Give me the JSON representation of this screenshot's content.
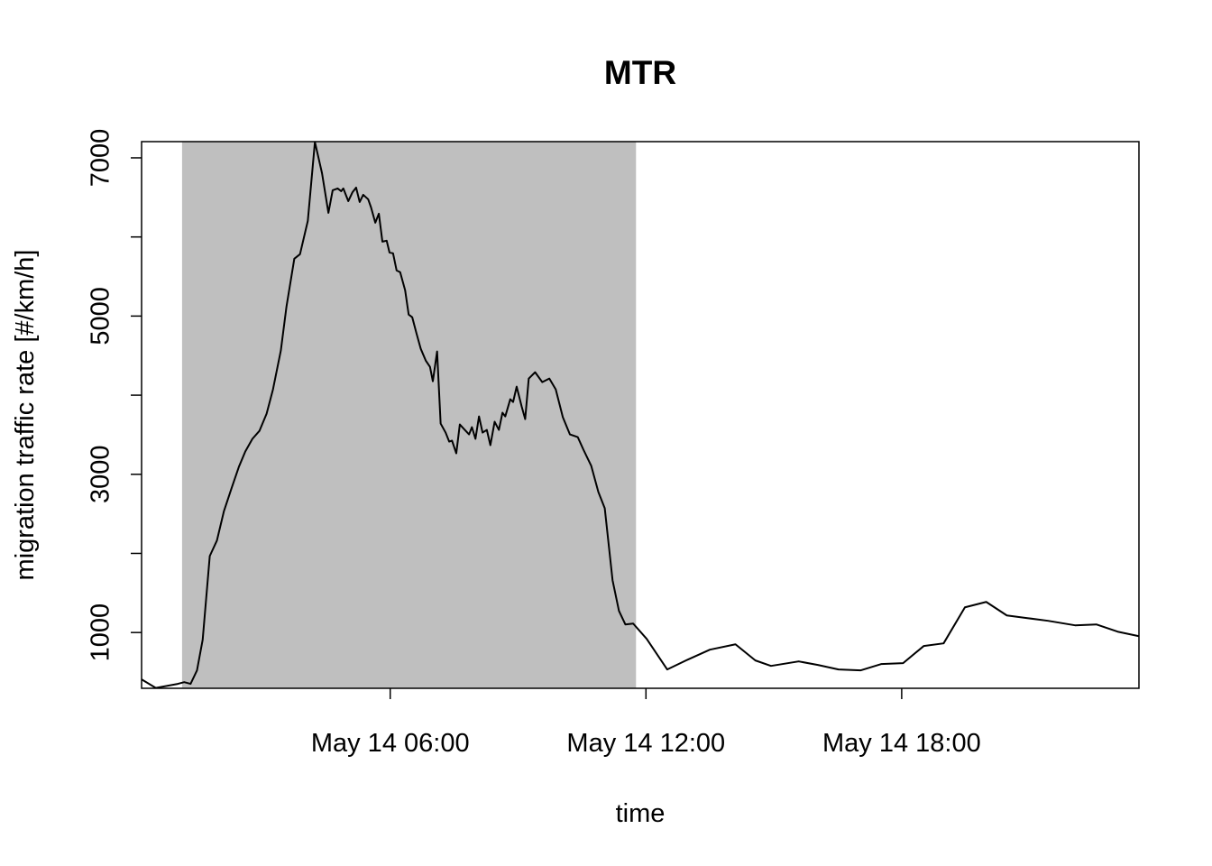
{
  "chart_data": {
    "type": "line",
    "title": "MTR",
    "xlabel": "time",
    "ylabel": "migration traffic rate [#/km/h]",
    "x": [
      "00:10",
      "00:30",
      "01:01",
      "01:10",
      "01:19",
      "01:28",
      "01:36",
      "01:46",
      "01:56",
      "02:06",
      "02:17",
      "02:27",
      "02:36",
      "02:46",
      "02:56",
      "03:06",
      "03:15",
      "03:26",
      "03:34",
      "03:45",
      "03:53",
      "04:04",
      "04:14",
      "04:24",
      "04:33",
      "04:39",
      "04:46",
      "04:51",
      "04:54",
      "05:01",
      "05:07",
      "05:12",
      "05:17",
      "05:22",
      "05:29",
      "05:33",
      "05:39",
      "05:44",
      "05:49",
      "05:55",
      "05:59",
      "06:04",
      "06:09",
      "06:14",
      "06:21",
      "06:26",
      "06:31",
      "06:37",
      "06:43",
      "06:50",
      "06:56",
      "07:00",
      "07:06",
      "07:11",
      "07:18",
      "07:23",
      "07:27",
      "07:33",
      "07:38",
      "07:45",
      "07:51",
      "07:55",
      "08:00",
      "08:05",
      "08:10",
      "08:16",
      "08:21",
      "08:27",
      "08:33",
      "08:38",
      "08:42",
      "08:49",
      "08:53",
      "08:58",
      "09:05",
      "09:10",
      "09:15",
      "09:24",
      "09:34",
      "09:44",
      "09:53",
      "10:03",
      "10:13",
      "10:24",
      "10:32",
      "10:43",
      "10:53",
      "11:02",
      "11:13",
      "11:22",
      "11:31",
      "11:42",
      "12:01",
      "12:30",
      "12:59",
      "13:30",
      "14:06",
      "14:34",
      "14:56",
      "15:35",
      "16:02",
      "16:31",
      "17:02",
      "17:31",
      "18:02",
      "18:31",
      "18:59",
      "19:29",
      "19:59",
      "20:28",
      "20:57",
      "21:26",
      "22:04",
      "22:34",
      "23:04",
      "23:34"
    ],
    "series": [
      {
        "name": "MTR",
        "color": "#000000",
        "values": [
          408,
          300,
          351,
          373,
          351,
          521,
          909,
          1967,
          2161,
          2537,
          2833,
          3095,
          3288,
          3448,
          3550,
          3766,
          4074,
          4563,
          5121,
          5725,
          5782,
          6203,
          7200,
          6806,
          6305,
          6590,
          6613,
          6579,
          6613,
          6453,
          6567,
          6624,
          6442,
          6533,
          6476,
          6374,
          6180,
          6294,
          5941,
          5953,
          5804,
          5793,
          5577,
          5554,
          5326,
          5019,
          4985,
          4780,
          4586,
          4438,
          4358,
          4176,
          4552,
          3641,
          3527,
          3413,
          3425,
          3265,
          3630,
          3561,
          3504,
          3596,
          3448,
          3732,
          3527,
          3561,
          3368,
          3664,
          3561,
          3778,
          3732,
          3949,
          3914,
          4108,
          3858,
          3698,
          4210,
          4290,
          4165,
          4210,
          4074,
          3721,
          3504,
          3470,
          3311,
          3106,
          2776,
          2571,
          1660,
          1273,
          1102,
          1113,
          920,
          533,
          658,
          783,
          851,
          647,
          578,
          635,
          590,
          533,
          521,
          601,
          613,
          829,
          863,
          1318,
          1387,
          1216,
          1182,
          1148,
          1091,
          1102,
          1011,
          954
        ]
      }
    ],
    "xlim": [
      "00:10",
      "23:34"
    ],
    "xticks": [
      {
        "value": "06:00",
        "label": "May 14 06:00"
      },
      {
        "value": "12:00",
        "label": "May 14 12:00"
      },
      {
        "value": "18:00",
        "label": "May 14 18:00"
      }
    ],
    "ylim": [
      295,
      7205
    ],
    "yticks": [
      1000,
      3000,
      5000,
      7000
    ],
    "minor_yticks": [
      2000,
      4000,
      6000
    ],
    "shade": [
      "01:07",
      "11:46"
    ],
    "shade_color": "#bfbfbf",
    "grid": false
  }
}
